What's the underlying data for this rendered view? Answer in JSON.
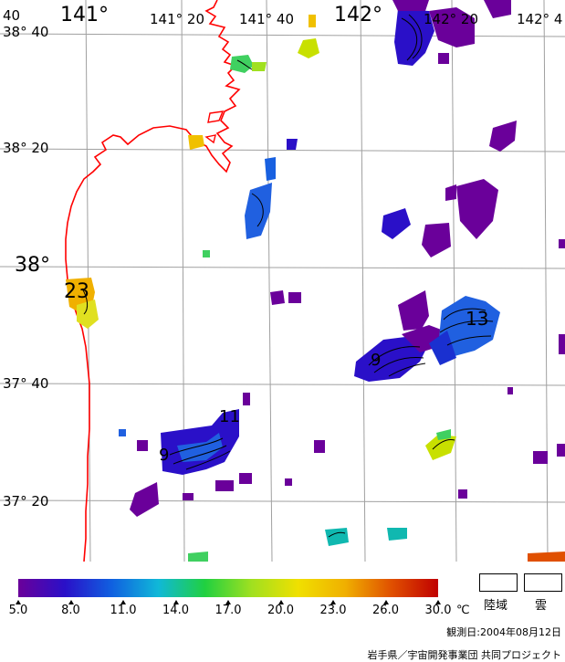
{
  "map": {
    "lon_labels": {
      "lon_141_00": "141°",
      "lon_141_20": "141° 20",
      "lon_141_40": "141° 40",
      "lon_142_00": "142°",
      "lon_142_20": "142° 20",
      "lon_142_40": "142° 4"
    },
    "lat_labels": {
      "lat_38_40": "38° 40",
      "lat_38_20": "38° 20",
      "lat_38_00": "38°",
      "lat_37_40": "37° 40",
      "lat_37_20": "37° 20"
    },
    "corner_label": "40",
    "contour_labels": [
      "23",
      "13",
      "9",
      "11",
      "9"
    ],
    "coastline_color": "#ff0000",
    "grid_color": "#a0a0a0"
  },
  "legend": {
    "scale_colors": [
      "#6a009a",
      "#2a10c8",
      "#1060e0",
      "#10b8d8",
      "#20d040",
      "#a0e020",
      "#f0e000",
      "#f0b000",
      "#e05000",
      "#c00000"
    ],
    "tick_labels": [
      "5.0",
      "8.0",
      "11.0",
      "14.0",
      "17.0",
      "20.0",
      "23.0",
      "26.0",
      "30.0"
    ],
    "unit": "℃",
    "land_label": "陸域",
    "cloud_label": "雲"
  },
  "footer": {
    "observation_date": "観測日:2004年08月12日",
    "credit": "岩手県／宇宙開発事業団 共同プロジェクト"
  }
}
